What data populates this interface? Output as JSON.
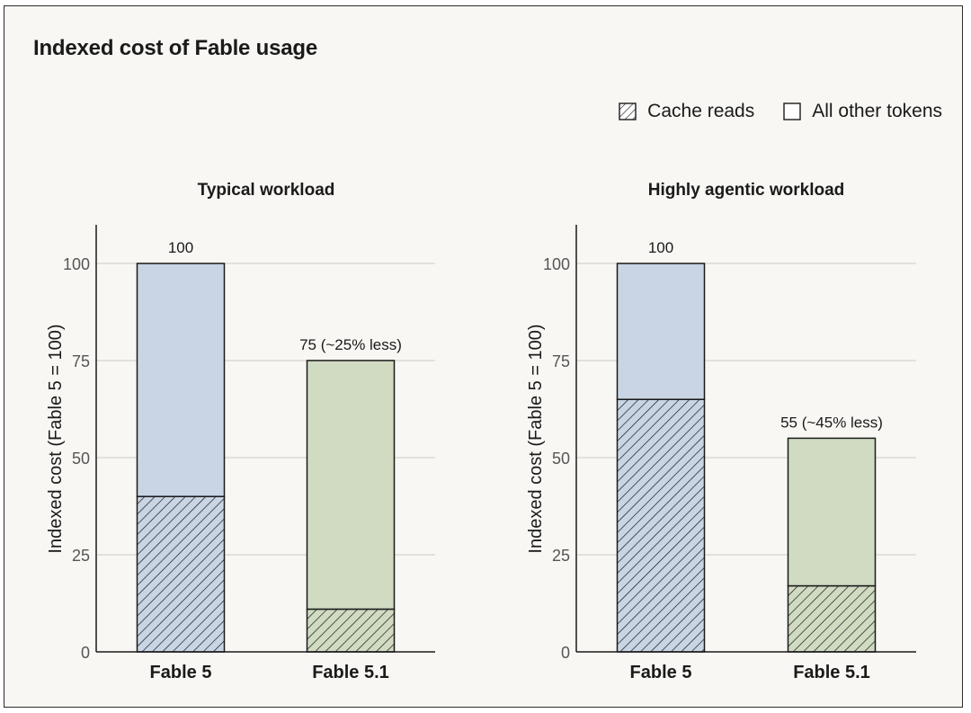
{
  "title": "Indexed cost of Fable usage",
  "legend": {
    "cache_reads": "Cache reads",
    "other_tokens": "All other tokens"
  },
  "colors": {
    "fable5": "#c9d5e5",
    "fable51": "#d0dbc2",
    "gridline": "#d6d4cd",
    "stroke": "#1a1a1a",
    "background": "#f8f7f3"
  },
  "chart_data": [
    {
      "type": "bar",
      "stacked": true,
      "title": "Typical workload",
      "ylabel": "Indexed cost (Fable 5 = 100)",
      "ylim": [
        0,
        110
      ],
      "yticks": [
        0,
        25,
        50,
        75,
        100
      ],
      "categories": [
        "Fable 5",
        "Fable 5.1"
      ],
      "series": [
        {
          "name": "Cache reads",
          "values": [
            40,
            11
          ]
        },
        {
          "name": "All other tokens",
          "values": [
            60,
            64
          ]
        }
      ],
      "totals": [
        100,
        75
      ],
      "data_labels": [
        "100",
        "75 (~25% less)"
      ]
    },
    {
      "type": "bar",
      "stacked": true,
      "title": "Highly agentic workload",
      "ylabel": "Indexed cost (Fable 5 = 100)",
      "ylim": [
        0,
        110
      ],
      "yticks": [
        0,
        25,
        50,
        75,
        100
      ],
      "categories": [
        "Fable 5",
        "Fable 5.1"
      ],
      "series": [
        {
          "name": "Cache reads",
          "values": [
            65,
            17
          ]
        },
        {
          "name": "All other tokens",
          "values": [
            35,
            38
          ]
        }
      ],
      "totals": [
        100,
        55
      ],
      "data_labels": [
        "100",
        "55 (~45% less)"
      ]
    }
  ]
}
